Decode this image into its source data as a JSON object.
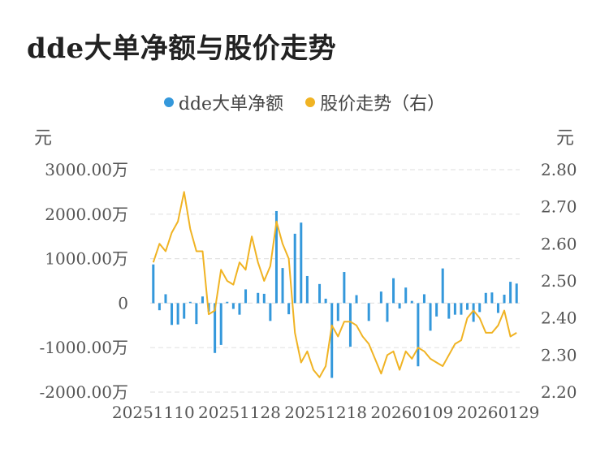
{
  "title": "dde大单净额与股价走势",
  "legend": {
    "items": [
      {
        "name": "dde大单净额",
        "color": "#3498db"
      },
      {
        "name": "股价走势（右）",
        "color": "#f0b323"
      }
    ]
  },
  "chart_data": {
    "type": "bar+line",
    "title": "dde大单净额与股价走势",
    "left_axis": {
      "unit_label": "元",
      "ticks": [
        "3000.00万",
        "2000.00万",
        "1000.00万",
        "0",
        "-1000.00万",
        "-2000.00万"
      ],
      "tick_values": [
        3000,
        2000,
        1000,
        0,
        -1000,
        -2000
      ],
      "range": [
        -2000,
        3000
      ]
    },
    "right_axis": {
      "unit_label": "元",
      "ticks": [
        "2.80",
        "2.70",
        "2.60",
        "2.50",
        "2.40",
        "2.30",
        "2.20"
      ],
      "tick_values": [
        2.8,
        2.7,
        2.6,
        2.5,
        2.4,
        2.3,
        2.2
      ],
      "range": [
        2.2,
        2.8
      ]
    },
    "x_tick_labels": [
      {
        "label": "20251110",
        "index": 0
      },
      {
        "label": "20251128",
        "index": 14
      },
      {
        "label": "20251218",
        "index": 28
      },
      {
        "label": "20260109",
        "index": 42
      },
      {
        "label": "20260129",
        "index": 56
      }
    ],
    "series": [
      {
        "name": "dde大单净额",
        "type": "bar",
        "color": "#3498db",
        "values": [
          870,
          -160,
          200,
          -490,
          -480,
          -350,
          30,
          -470,
          150,
          -190,
          -1120,
          -940,
          30,
          -130,
          -260,
          310,
          0,
          230,
          210,
          -400,
          2070,
          790,
          -250,
          1560,
          1810,
          610,
          0,
          430,
          100,
          -1680,
          -400,
          700,
          -980,
          180,
          0,
          -400,
          0,
          260,
          -420,
          560,
          -120,
          350,
          50,
          -1420,
          200,
          -620,
          -300,
          780,
          -350,
          -260,
          -260,
          -150,
          -420,
          -200,
          230,
          240,
          -220,
          190,
          480,
          440
        ],
        "unit": "万元"
      },
      {
        "name": "股价走势（右）",
        "type": "line",
        "color": "#f0b323",
        "values": [
          2.55,
          2.6,
          2.58,
          2.63,
          2.66,
          2.74,
          2.64,
          2.58,
          2.58,
          2.41,
          2.42,
          2.53,
          2.5,
          2.49,
          2.55,
          2.53,
          2.62,
          2.55,
          2.5,
          2.54,
          2.66,
          2.6,
          2.56,
          2.36,
          2.28,
          2.31,
          2.26,
          2.24,
          2.27,
          2.38,
          2.35,
          2.39,
          2.39,
          2.38,
          2.35,
          2.33,
          2.29,
          2.25,
          2.3,
          2.31,
          2.26,
          2.31,
          2.29,
          2.32,
          2.31,
          2.29,
          2.28,
          2.27,
          2.3,
          2.33,
          2.34,
          2.4,
          2.42,
          2.4,
          2.36,
          2.36,
          2.38,
          2.42,
          2.35,
          2.36
        ],
        "unit": "元"
      }
    ]
  }
}
